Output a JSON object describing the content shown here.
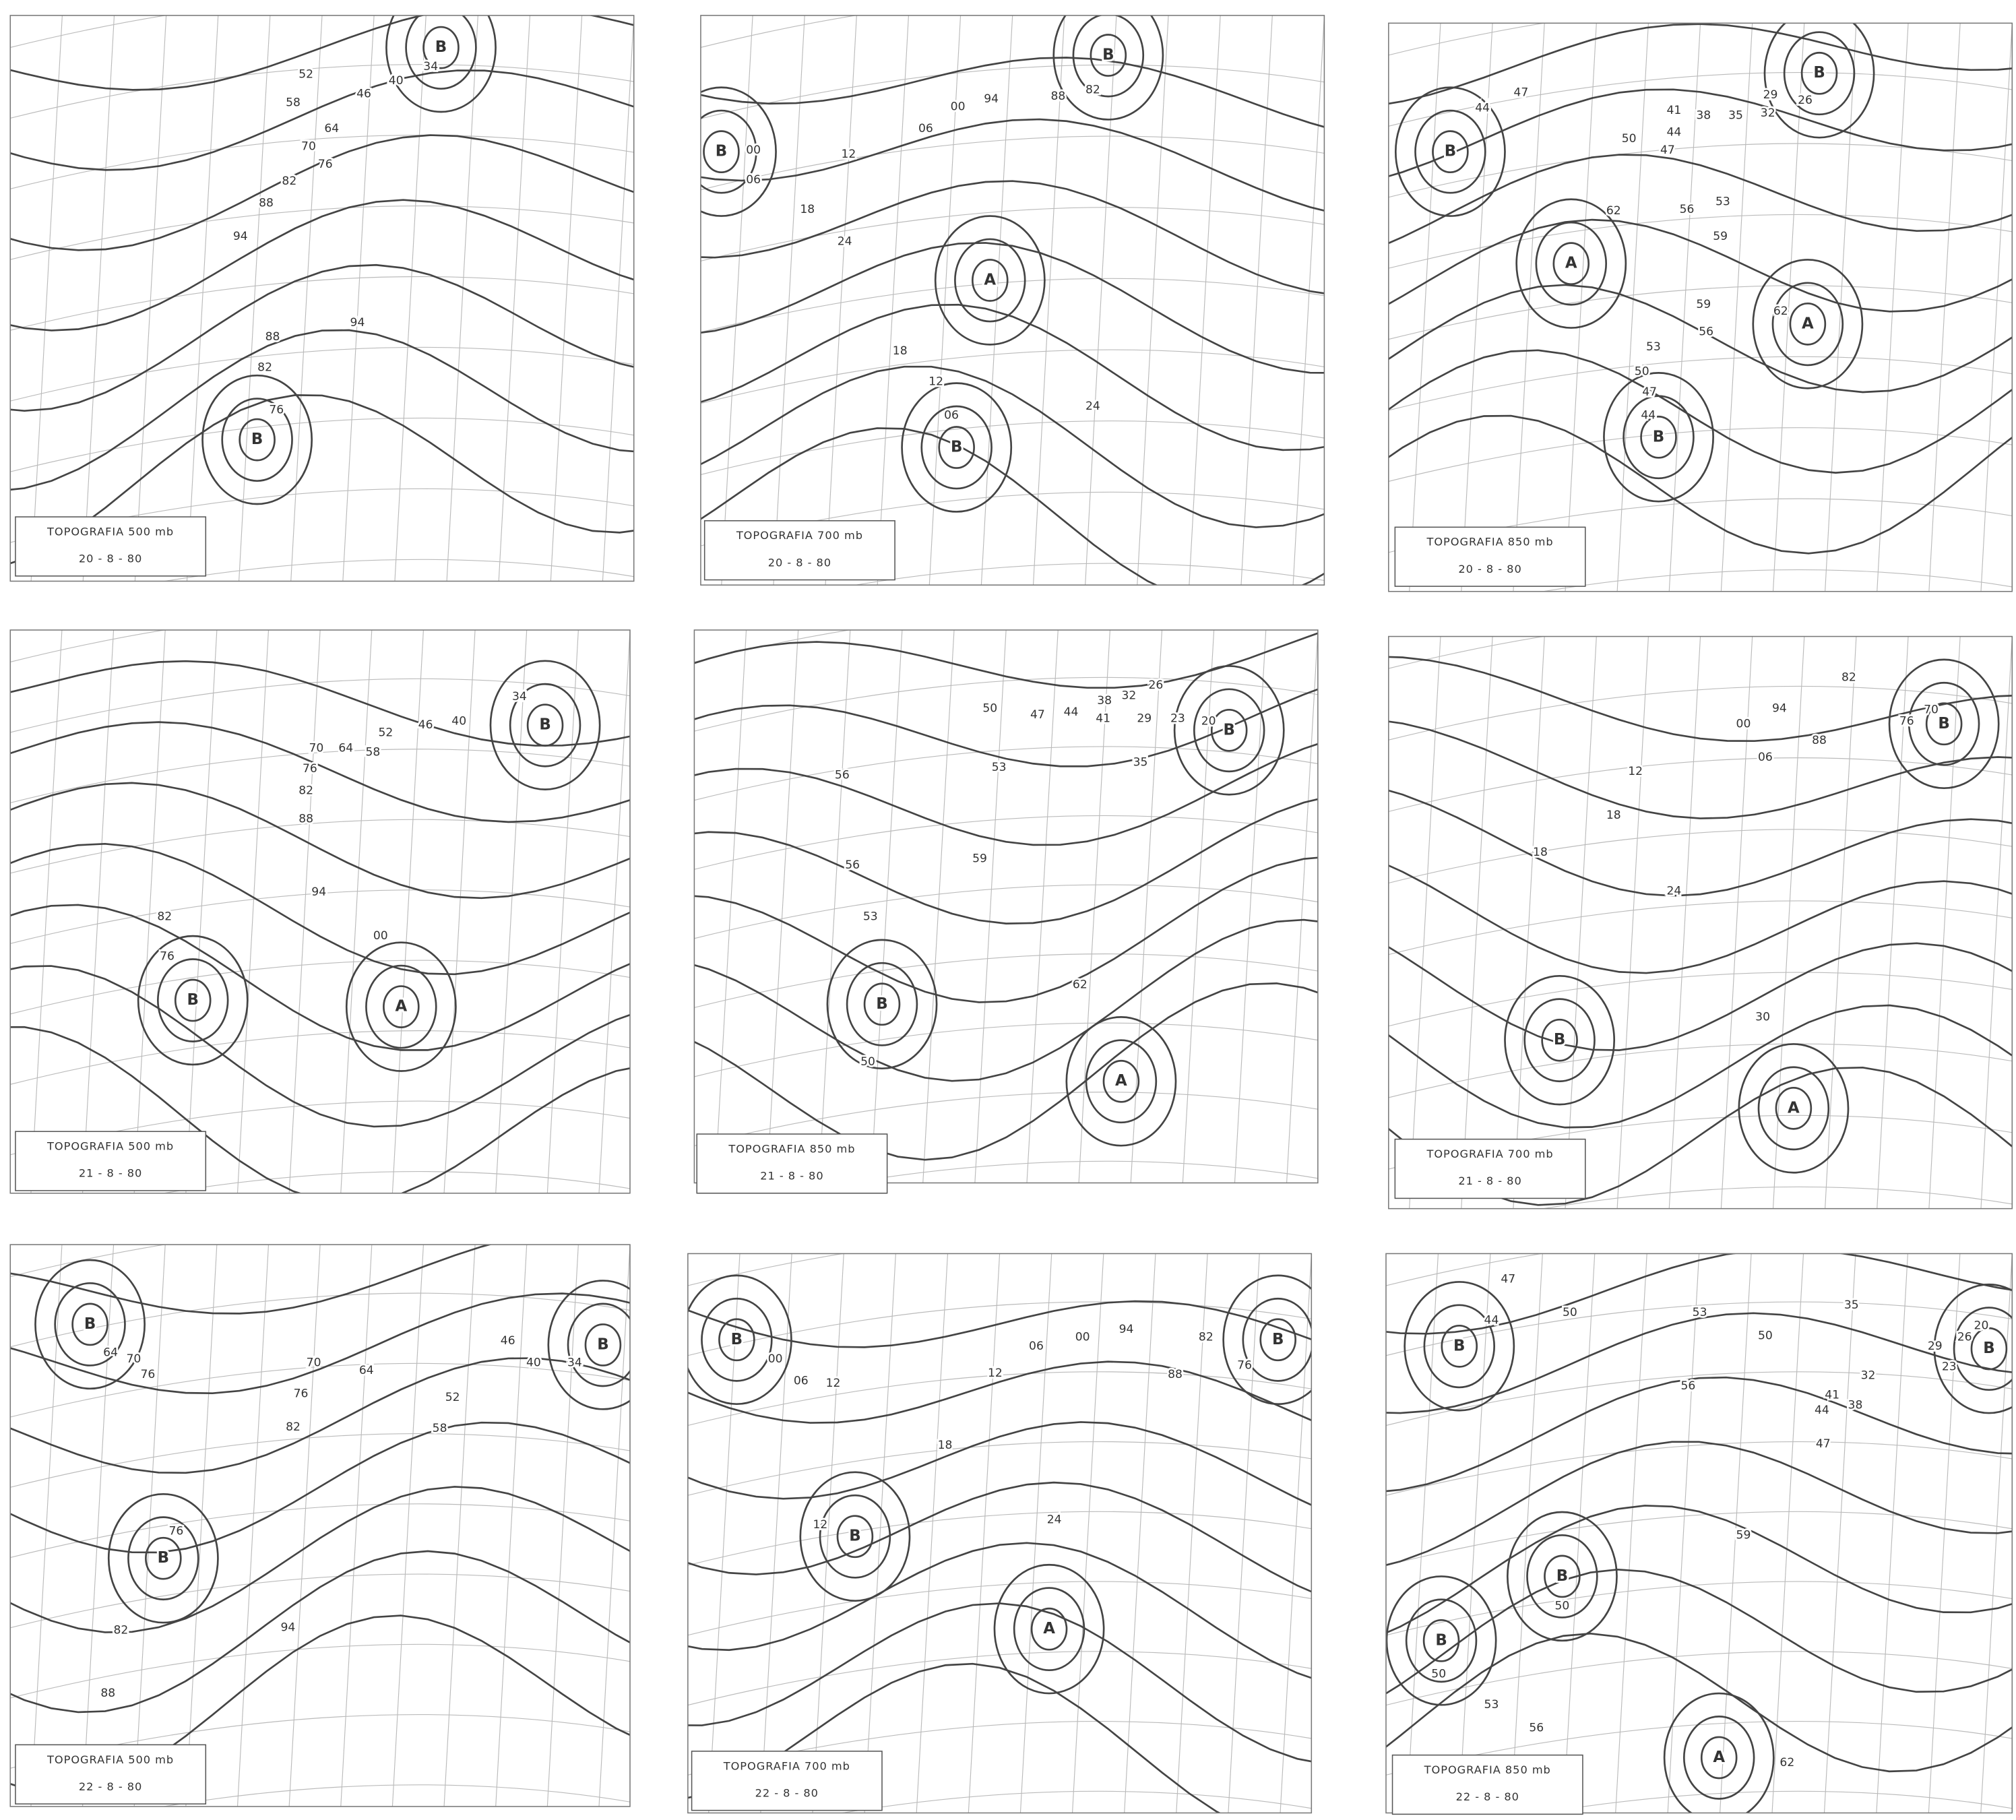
{
  "panels": [
    {
      "title": "TOPOGRAFIA 500 mb",
      "date": "20 - 8 - 80",
      "labels": [
        "52",
        "46",
        "40",
        "34",
        "58",
        "64",
        "70",
        "76",
        "82",
        "88",
        "94",
        "94",
        "88",
        "82",
        "76",
        "B",
        "B"
      ]
    },
    {
      "title": "TOPOGRAFIA 700 mb",
      "date": "20 - 8 - 80",
      "labels": [
        "00",
        "06",
        "B",
        "12",
        "06",
        "00",
        "94",
        "88",
        "82",
        "B",
        "18",
        "24",
        "A",
        "18",
        "12",
        "06",
        "B",
        "24"
      ]
    },
    {
      "title": "TOPOGRAFIA 850 mb",
      "date": "20 - 8 - 80",
      "labels": [
        "44",
        "47",
        "B",
        "B",
        "29",
        "26",
        "41",
        "38",
        "35",
        "32",
        "50",
        "44",
        "47",
        "53",
        "56",
        "59",
        "62",
        "A",
        "59",
        "62",
        "A",
        "56",
        "53",
        "50",
        "47",
        "44",
        "B"
      ]
    },
    {
      "title": "TOPOGRAFIA 500 mb",
      "date": "21 - 8 - 80",
      "labels": [
        "34",
        "B",
        "40",
        "46",
        "52",
        "58",
        "64",
        "70",
        "76",
        "82",
        "88",
        "94",
        "00",
        "A",
        "82",
        "76",
        "B"
      ]
    },
    {
      "title": "TOPOGRAFIA 850 mb",
      "date": "21 - 8 - 80",
      "labels": [
        "50",
        "47",
        "44",
        "41",
        "38",
        "32",
        "26",
        "29",
        "23",
        "20",
        "B",
        "35",
        "53",
        "56",
        "59",
        "56",
        "53",
        "B",
        "50",
        "62",
        "A"
      ]
    },
    {
      "title": "TOPOGRAFIA 700 mb",
      "date": "21 - 8 - 80",
      "labels": [
        "82",
        "70",
        "76",
        "B",
        "94",
        "00",
        "88",
        "06",
        "12",
        "18",
        "18",
        "24",
        "B",
        "30",
        "A"
      ]
    },
    {
      "title": "TOPOGRAFIA 500 mb",
      "date": "22 - 8 - 80",
      "labels": [
        "B",
        "64",
        "70",
        "76",
        "70",
        "64",
        "76",
        "82",
        "52",
        "58",
        "46",
        "40",
        "34",
        "B",
        "76",
        "B",
        "82",
        "88",
        "94"
      ]
    },
    {
      "title": "TOPOGRAFIA 700 mb",
      "date": "22 - 8 - 80",
      "labels": [
        "B",
        "00",
        "06",
        "12",
        "12",
        "06",
        "00",
        "94",
        "82",
        "B",
        "76",
        "88",
        "18",
        "24",
        "12",
        "B",
        "A"
      ]
    },
    {
      "title": "TOPOGRAFIA 850 mb",
      "date": "22 - 8 - 80",
      "labels": [
        "47",
        "44",
        "B",
        "50",
        "53",
        "50",
        "35",
        "26",
        "20",
        "29",
        "B",
        "23",
        "32",
        "41",
        "38",
        "44",
        "47",
        "56",
        "59",
        "B",
        "50",
        "B",
        "50",
        "53",
        "56",
        "A",
        "62"
      ]
    }
  ]
}
